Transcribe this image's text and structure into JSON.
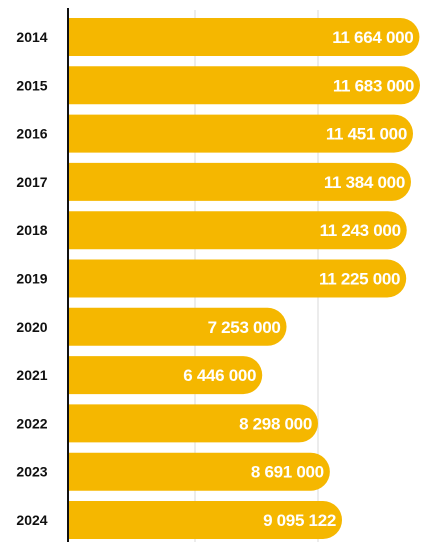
{
  "colors": {
    "bar": "#F5B700",
    "axis": "#111111",
    "grid": "#d9d9d9",
    "label": "#111111",
    "value_text": "#ffffff"
  },
  "chart_data": {
    "type": "bar",
    "orientation": "horizontal",
    "title": "",
    "xlabel": "",
    "ylabel": "",
    "grid": true,
    "xlim": [
      0,
      12500000
    ],
    "categories": [
      "2014",
      "2015",
      "2016",
      "2017",
      "2018",
      "2019",
      "2020",
      "2021",
      "2022",
      "2023",
      "2024"
    ],
    "values": [
      11664000,
      11683000,
      11451000,
      11384000,
      11243000,
      11225000,
      7253000,
      6446000,
      8298000,
      8691000,
      9095122
    ],
    "value_labels": [
      "11 664 000",
      "11 683 000",
      "11 451 000",
      "11 384 000",
      "11 243 000",
      "11 225 000",
      "7 253 000",
      "6 446 000",
      "8 298 000",
      "8 691 000",
      "9 095 122"
    ]
  }
}
